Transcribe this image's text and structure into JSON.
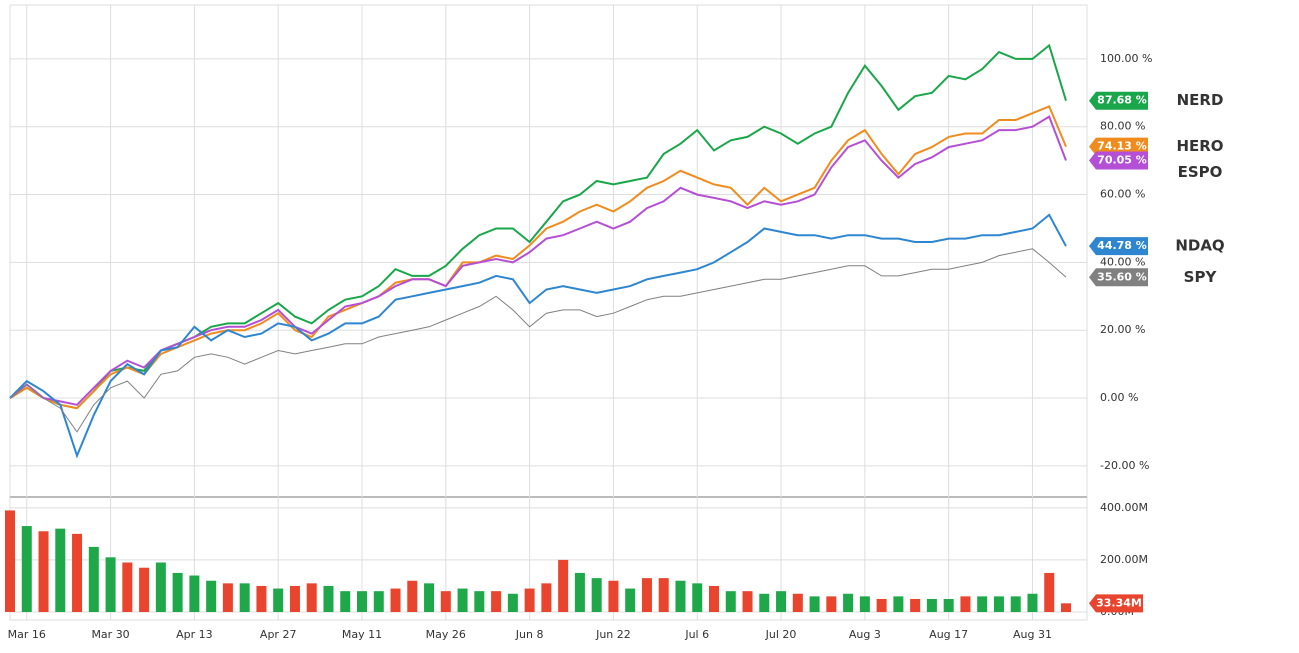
{
  "chart_data": [
    {
      "type": "line",
      "categories": [
        null,
        "Mar 16",
        null,
        null,
        null,
        null,
        "Mar 30",
        null,
        null,
        null,
        null,
        "Apr 13",
        null,
        null,
        null,
        null,
        "Apr 27",
        null,
        null,
        null,
        null,
        "May 11",
        null,
        null,
        null,
        null,
        "May 26",
        null,
        null,
        null,
        null,
        "Jun 8",
        null,
        null,
        null,
        null,
        "Jun 22",
        null,
        null,
        null,
        null,
        "Jul 6",
        null,
        null,
        null,
        null,
        "Jul 20",
        null,
        null,
        null,
        null,
        "Aug 3",
        null,
        null,
        null,
        null,
        "Aug 17",
        null,
        null,
        null,
        null,
        "Aug 31",
        null,
        null
      ],
      "ylim": [
        -28.6,
        115.9
      ],
      "yticks": [
        {
          "value": -20,
          "label": "-20.00 %"
        },
        {
          "value": 0,
          "label": "0.00 %"
        },
        {
          "value": 20,
          "label": "20.00 %"
        },
        {
          "value": 40,
          "label": "40.00 %"
        },
        {
          "value": 60,
          "label": "60.00 %"
        },
        {
          "value": 80,
          "label": "80.00 %"
        },
        {
          "value": 100,
          "label": "100.00 %"
        }
      ],
      "grid": true,
      "series": [
        {
          "name": "NERD",
          "color": "#1aa64a",
          "legend_color": "#5fd39a",
          "last_label": "87.68 %",
          "values": [
            0,
            3,
            0,
            -2,
            -3,
            2,
            8,
            9,
            8,
            14,
            16,
            18,
            21,
            22,
            22,
            25,
            28,
            24,
            22,
            26,
            29,
            30,
            33,
            38,
            36,
            36,
            39,
            44,
            48,
            50,
            50,
            46,
            52,
            58,
            60,
            64,
            63,
            64,
            65,
            72,
            75,
            79,
            73,
            76,
            77,
            80,
            78,
            75,
            78,
            80,
            90,
            98,
            92,
            85,
            89,
            90,
            95,
            94,
            97,
            102,
            100,
            100,
            104,
            87.68
          ]
        },
        {
          "name": "HERO",
          "color": "#f08c1e",
          "legend_color": "#f08c1e",
          "last_label": "74.13 %",
          "values": [
            0,
            3,
            0,
            -2,
            -3,
            2,
            7,
            9,
            7,
            13,
            15,
            17,
            19,
            20,
            20,
            22,
            25,
            20,
            18,
            24,
            26,
            28,
            30,
            34,
            35,
            35,
            33,
            40,
            40,
            42,
            41,
            45,
            50,
            52,
            55,
            57,
            55,
            58,
            62,
            64,
            67,
            65,
            63,
            62,
            57,
            62,
            58,
            60,
            62,
            70,
            76,
            79,
            72,
            66,
            72,
            74,
            77,
            78,
            78,
            82,
            82,
            84,
            86,
            74.13
          ]
        },
        {
          "name": "ESPO",
          "color": "#b44fd6",
          "legend_color": "#9b59d0",
          "last_label": "70.05 %",
          "values": [
            0,
            4,
            0,
            -1,
            -2,
            3,
            8,
            11,
            9,
            14,
            16,
            18,
            20,
            21,
            21,
            23,
            26,
            21,
            19,
            23,
            27,
            28,
            30,
            33,
            35,
            35,
            33,
            39,
            40,
            41,
            40,
            43,
            47,
            48,
            50,
            52,
            50,
            52,
            56,
            58,
            62,
            60,
            59,
            58,
            56,
            58,
            57,
            58,
            60,
            68,
            74,
            76,
            70,
            65,
            69,
            71,
            74,
            75,
            76,
            79,
            79,
            80,
            83,
            70.05
          ]
        },
        {
          "name": "NDAQ",
          "color": "#2e86d1",
          "legend_color": "#5aaee6",
          "last_label": "44.78 %",
          "values": [
            0,
            5,
            2,
            -2,
            -17,
            -5,
            5,
            10,
            7,
            14,
            15,
            21,
            17,
            20,
            18,
            19,
            22,
            21,
            17,
            19,
            22,
            22,
            24,
            29,
            30,
            31,
            32,
            33,
            34,
            36,
            35,
            28,
            32,
            33,
            32,
            31,
            32,
            33,
            35,
            36,
            37,
            38,
            40,
            43,
            46,
            50,
            49,
            48,
            48,
            47,
            48,
            48,
            47,
            47,
            46,
            46,
            47,
            47,
            48,
            48,
            49,
            50,
            54,
            44.78
          ]
        },
        {
          "name": "SPY",
          "color": "#808080",
          "legend_color": "#111111",
          "last_label": "35.60 %",
          "values": [
            0,
            4,
            0,
            -3,
            -10,
            -2,
            3,
            5,
            0,
            7,
            8,
            12,
            13,
            12,
            10,
            12,
            14,
            13,
            14,
            15,
            16,
            16,
            18,
            19,
            20,
            21,
            23,
            25,
            27,
            30,
            26,
            21,
            25,
            26,
            26,
            24,
            25,
            27,
            29,
            30,
            30,
            31,
            32,
            33,
            34,
            35,
            35,
            36,
            37,
            38,
            39,
            39,
            36,
            36,
            37,
            38,
            38,
            39,
            40,
            42,
            43,
            44,
            40,
            35.6
          ]
        }
      ]
    },
    {
      "type": "bar",
      "ylim": [
        0,
        430
      ],
      "yticks": [
        {
          "value": 0,
          "label": "0.00M"
        },
        {
          "value": 200,
          "label": "200.00M"
        },
        {
          "value": 400,
          "label": "400.00M"
        }
      ],
      "last_label": "33.34M",
      "values": [
        390,
        330,
        310,
        320,
        300,
        250,
        210,
        190,
        170,
        190,
        150,
        140,
        120,
        110,
        110,
        100,
        90,
        100,
        110,
        100,
        80,
        80,
        80,
        90,
        120,
        110,
        80,
        90,
        80,
        80,
        70,
        90,
        110,
        200,
        150,
        130,
        120,
        90,
        130,
        130,
        120,
        110,
        100,
        80,
        80,
        70,
        80,
        70,
        60,
        60,
        70,
        60,
        50,
        60,
        50,
        50,
        50,
        60,
        60,
        60,
        60,
        70,
        150,
        33.34
      ],
      "colors": [
        "#e8442e",
        "#1ea84a",
        "#e8442e",
        "#1ea84a",
        "#e8442e",
        "#1ea84a",
        "#1ea84a",
        "#e8442e",
        "#e8442e",
        "#1ea84a",
        "#1ea84a",
        "#1ea84a",
        "#1ea84a",
        "#e8442e",
        "#1ea84a",
        "#e8442e",
        "#1ea84a",
        "#e8442e",
        "#e8442e",
        "#1ea84a",
        "#1ea84a",
        "#1ea84a",
        "#1ea84a",
        "#e8442e",
        "#e8442e",
        "#1ea84a",
        "#e8442e",
        "#1ea84a",
        "#1ea84a",
        "#e8442e",
        "#1ea84a",
        "#e8442e",
        "#e8442e",
        "#e8442e",
        "#1ea84a",
        "#1ea84a",
        "#e8442e",
        "#1ea84a",
        "#e8442e",
        "#e8442e",
        "#1ea84a",
        "#1ea84a",
        "#e8442e",
        "#1ea84a",
        "#e8442e",
        "#1ea84a",
        "#1ea84a",
        "#e8442e",
        "#1ea84a",
        "#e8442e",
        "#1ea84a",
        "#1ea84a",
        "#e8442e",
        "#1ea84a",
        "#e8442e",
        "#1ea84a",
        "#1ea84a",
        "#e8442e",
        "#1ea84a",
        "#1ea84a",
        "#1ea84a",
        "#1ea84a",
        "#e8442e",
        "#e8442e"
      ]
    }
  ]
}
